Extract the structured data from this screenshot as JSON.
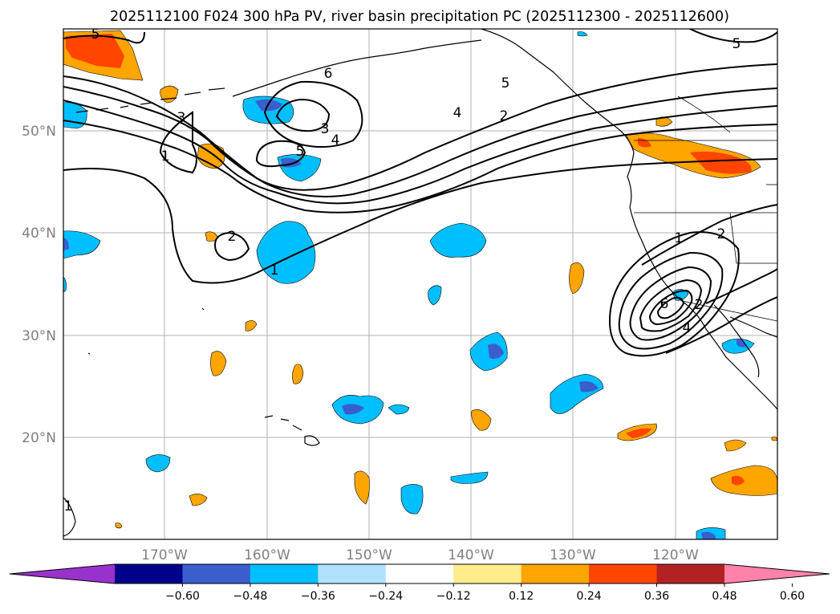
{
  "title": "2025112100 F024 300 hPa PV, river basin precipitation PC (2025112300 - 2025112600)",
  "lat_labels": [
    "50°N",
    "40°N",
    "30°N",
    "20°N"
  ],
  "lon_labels": [
    "170°W",
    "160°W",
    "150°W",
    "140°W",
    "130°W",
    "120°W"
  ],
  "colorbar": {
    "ticks": [
      "−0.60",
      "−0.48",
      "−0.36",
      "−0.24",
      "−0.12",
      "0.12",
      "0.24",
      "0.36",
      "0.48",
      "0.60"
    ],
    "colors": [
      "#9932cc",
      "#00008b",
      "#3a5fcd",
      "#00bfff",
      "#b0e2ff",
      "#ffffff",
      "#ffec8b",
      "#ffa500",
      "#ff4500",
      "#b22222",
      "#ff82ab"
    ]
  },
  "contour_labels": [
    "5",
    "6",
    "5",
    "5",
    "3",
    "4",
    "2",
    "3",
    "4",
    "5",
    "1",
    "2",
    "1",
    "1",
    "2",
    "6",
    "4",
    "2",
    "1"
  ]
}
